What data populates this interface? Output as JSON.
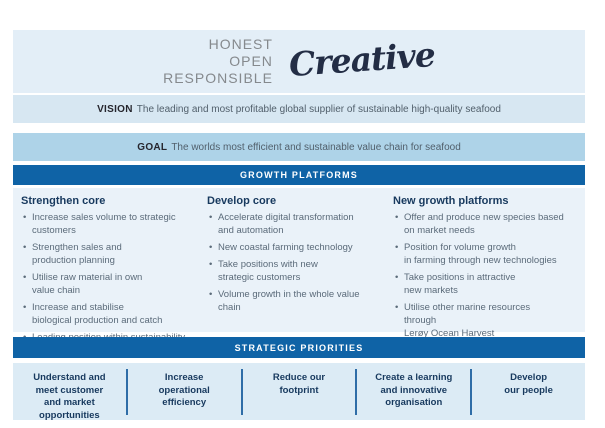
{
  "header": {
    "values_stacked": "HONEST\nOPEN\nRESPONSIBLE",
    "script_word": "Creative"
  },
  "vision": {
    "label": "VISION",
    "text": "The leading and most profitable global supplier of sustainable high-quality seafood"
  },
  "goal": {
    "label": "GOAL",
    "text": "The worlds most efficient and sustainable value chain for seafood"
  },
  "growth_platforms": {
    "title": "GROWTH PLATFORMS",
    "columns": [
      {
        "heading": "Strengthen core",
        "bullets": [
          "Increase sales volume to strategic\ncustomers",
          "Strengthen sales and\nproduction planning",
          "Utilise raw material in own\nvalue chain",
          "Increase and stabilise\nbiological production and catch",
          "Leading position within sustainability"
        ]
      },
      {
        "heading": "Develop core",
        "bullets": [
          "Accelerate digital transformation\nand automation",
          "New coastal farming technology",
          "Take positions with new\nstrategic customers",
          "Volume growth in the whole value chain"
        ]
      },
      {
        "heading": "New growth platforms",
        "bullets": [
          "Offer and produce new species based\non market needs",
          "Position for volume growth\nin farming through new technologies",
          "Take positions in attractive\nnew markets",
          "Utilise other marine resources through\nLerøy Ocean Harvest"
        ]
      }
    ]
  },
  "strategic_priorities": {
    "title": "STRATEGIC PRIORITIES",
    "items": [
      "Understand and\nmeet customer\nand market\nopportunities",
      "Increase\noperational\nefficiency",
      "Reduce our\nfootprint",
      "Create a learning\nand innovative\norganisation",
      "Develop\nour people"
    ]
  },
  "colors": {
    "top_band_bg": "#e3eef7",
    "vision_bg": "#d7e7f2",
    "goal_bg": "#aed3e8",
    "dark_bar_bg": "#0f63a6",
    "panel_bg": "#eaf2f9",
    "bottom_band_bg": "#dcebf5",
    "divider_blue": "#2f6da7",
    "heading_navy": "#17395e",
    "body_text": "#5b6b7a",
    "values_gray": "#85898d",
    "script_navy": "#232d45"
  }
}
